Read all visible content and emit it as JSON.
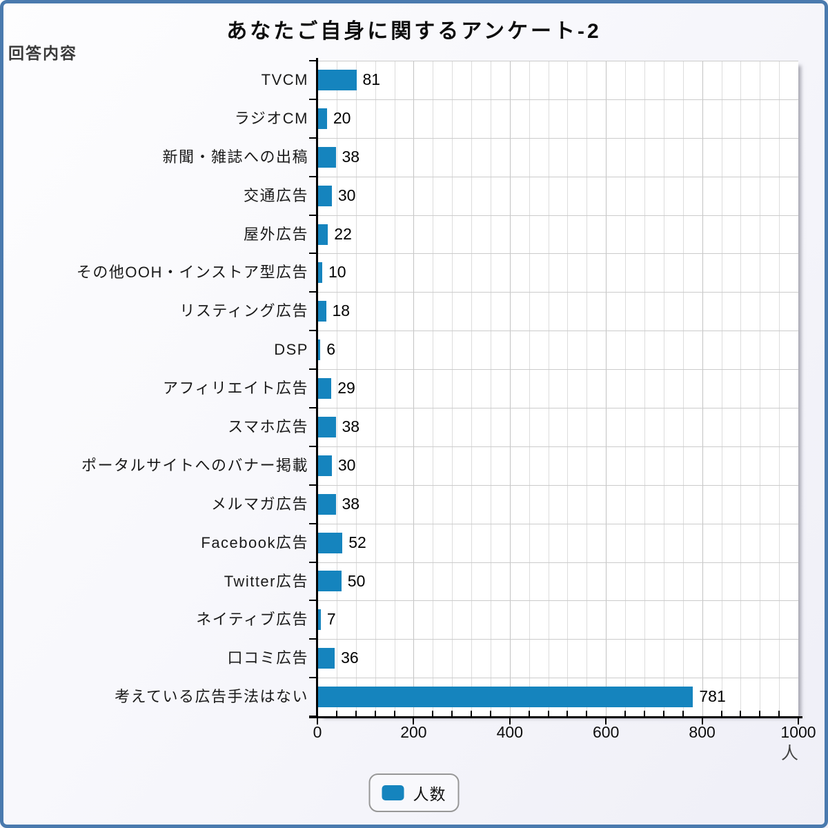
{
  "page": {
    "title": "あなたご自身に関するアンケート-2",
    "corner_label": "回答内容"
  },
  "legend": {
    "label": "人数",
    "swatch_color": "#1584be"
  },
  "axis": {
    "unit_label": "人"
  },
  "colors": {
    "bar": "#1584be",
    "frame_border": "#4a7aae",
    "axis_line": "#000000",
    "grid_minor": "#dcdcdc",
    "grid_major": "#c2c2c2"
  },
  "chart_data": {
    "type": "bar",
    "orientation": "horizontal",
    "title": "あなたご自身に関するアンケート-2",
    "categories": [
      "TVCM",
      "ラジオCM",
      "新聞・雑誌への出稿",
      "交通広告",
      "屋外広告",
      "その他OOH・インストア型広告",
      "リスティング広告",
      "DSP",
      "アフィリエイト広告",
      "スマホ広告",
      "ポータルサイトへのバナー掲載",
      "メルマガ広告",
      "Facebook広告",
      "Twitter広告",
      "ネイティブ広告",
      "口コミ広告",
      "考えている広告手法はない"
    ],
    "series": [
      {
        "name": "人数",
        "values": [
          81,
          20,
          38,
          30,
          22,
          10,
          18,
          6,
          29,
          38,
          30,
          38,
          52,
          50,
          7,
          36,
          781
        ]
      }
    ],
    "value_labels": [
      81,
      20,
      38,
      30,
      22,
      10,
      18,
      6,
      29,
      38,
      30,
      38,
      52,
      50,
      7,
      36,
      781
    ],
    "xlim": [
      0,
      1000
    ],
    "xticks": [
      0,
      200,
      400,
      600,
      800,
      1000
    ],
    "minor_grid_interval": 40,
    "grid": true,
    "x_unit": "人",
    "legend_position": "bottom",
    "legend_entries": [
      "人数"
    ]
  }
}
